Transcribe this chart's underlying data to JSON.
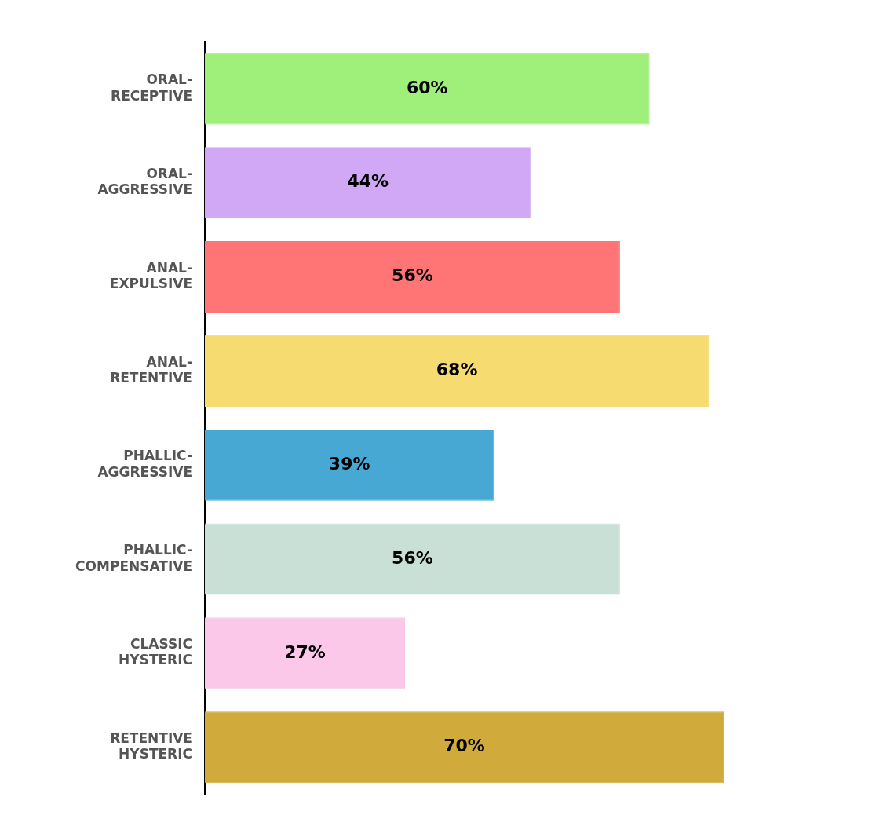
{
  "chart_data": {
    "type": "bar",
    "orientation": "horizontal",
    "categories": [
      "ORAL-RECEPTIVE",
      "ORAL-AGGRESSIVE",
      "ANAL-EXPULSIVE",
      "ANAL-RETENTIVE",
      "PHALLIC-AGGRESSIVE",
      "PHALLIC-COMPENSATIVE",
      "CLASSIC HYSTERIC",
      "RETENTIVE HYSTERIC"
    ],
    "values": [
      60,
      44,
      56,
      68,
      39,
      56,
      27,
      70
    ],
    "colors": [
      "#9ef07a",
      "#d0a8f5",
      "#ff7575",
      "#f6dc70",
      "#47a8d4",
      "#c8e0d6",
      "#fcc8ea",
      "#d0aa3a"
    ],
    "value_labels": [
      "60%",
      "44%",
      "56%",
      "68%",
      "39%",
      "56%",
      "27%",
      "70%"
    ],
    "tick_labels": "y",
    "grid": false,
    "legend": false
  }
}
